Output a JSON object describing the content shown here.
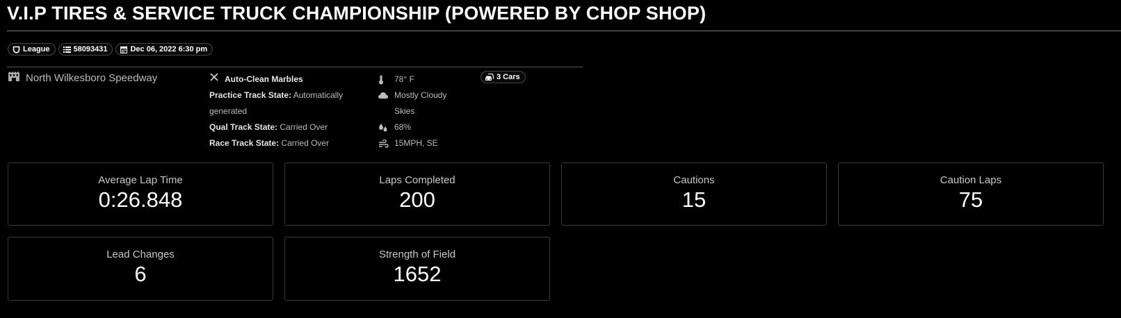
{
  "header": {
    "title": "V.I.P TIRES & SERVICE TRUCK CHAMPIONSHIP (POWERED BY CHOP SHOP)"
  },
  "badges": {
    "league_label": "League",
    "session_id": "58093431",
    "date": "Dec 06, 2022 6:30 pm",
    "cars": "3 Cars"
  },
  "track": {
    "name": "North Wilkesboro Speedway",
    "marbles": "Auto-Clean Marbles",
    "practice_label": "Practice Track State:",
    "practice_value": "Automatically generated",
    "qual_label": "Qual Track State:",
    "qual_value": "Carried Over",
    "race_label": "Race Track State:",
    "race_value": "Carried Over"
  },
  "weather": {
    "temperature": "78° F",
    "sky": "Mostly Cloudy Skies",
    "humidity": "68%",
    "wind": "15MPH, SE"
  },
  "stats": [
    {
      "label": "Average Lap Time",
      "value": "0:26.848"
    },
    {
      "label": "Laps Completed",
      "value": "200"
    },
    {
      "label": "Cautions",
      "value": "15"
    },
    {
      "label": "Caution Laps",
      "value": "75"
    },
    {
      "label": "Lead Changes",
      "value": "6"
    },
    {
      "label": "Strength of Field",
      "value": "1652"
    }
  ]
}
